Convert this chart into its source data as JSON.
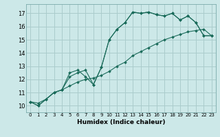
{
  "xlabel": "Humidex (Indice chaleur)",
  "background_color": "#cce8e8",
  "grid_color": "#aacccc",
  "line_color": "#1a6b5a",
  "xlim": [
    -0.5,
    23.5
  ],
  "ylim": [
    9.5,
    17.7
  ],
  "yticks": [
    10,
    11,
    12,
    13,
    14,
    15,
    16,
    17
  ],
  "xticks": [
    0,
    1,
    2,
    3,
    4,
    5,
    6,
    7,
    8,
    9,
    10,
    11,
    12,
    13,
    14,
    15,
    16,
    17,
    18,
    19,
    20,
    21,
    22,
    23
  ],
  "series": [
    {
      "x": [
        0,
        1,
        2,
        3,
        4,
        5,
        6,
        7,
        8,
        9,
        10,
        11,
        12,
        13,
        14,
        15,
        16,
        17,
        18,
        19,
        20,
        21,
        22,
        23
      ],
      "y": [
        10.3,
        10.0,
        10.5,
        11.0,
        11.2,
        12.5,
        12.7,
        12.2,
        11.6,
        12.9,
        15.0,
        15.8,
        16.3,
        17.1,
        17.0,
        17.1,
        16.9,
        16.8,
        17.0,
        16.5,
        16.8,
        16.3,
        15.3,
        15.3
      ]
    },
    {
      "x": [
        0,
        1,
        2,
        3,
        4,
        5,
        6,
        7,
        8,
        9,
        10,
        11,
        12,
        13,
        14,
        15,
        16,
        17,
        18,
        19,
        20,
        21,
        22,
        23
      ],
      "y": [
        10.3,
        10.0,
        10.5,
        11.0,
        11.2,
        12.2,
        12.5,
        12.7,
        11.6,
        12.9,
        15.0,
        15.8,
        16.3,
        17.1,
        17.0,
        17.1,
        16.9,
        16.8,
        17.0,
        16.5,
        16.8,
        16.3,
        15.3,
        15.3
      ]
    },
    {
      "x": [
        0,
        1,
        2,
        3,
        4,
        5,
        6,
        7,
        8,
        9,
        10,
        11,
        12,
        13,
        14,
        15,
        16,
        17,
        18,
        19,
        20,
        21,
        22,
        23
      ],
      "y": [
        10.3,
        10.2,
        10.5,
        11.0,
        11.2,
        11.5,
        11.8,
        12.0,
        12.1,
        12.3,
        12.6,
        13.0,
        13.3,
        13.8,
        14.1,
        14.4,
        14.7,
        15.0,
        15.2,
        15.4,
        15.6,
        15.7,
        15.8,
        15.3
      ]
    }
  ]
}
